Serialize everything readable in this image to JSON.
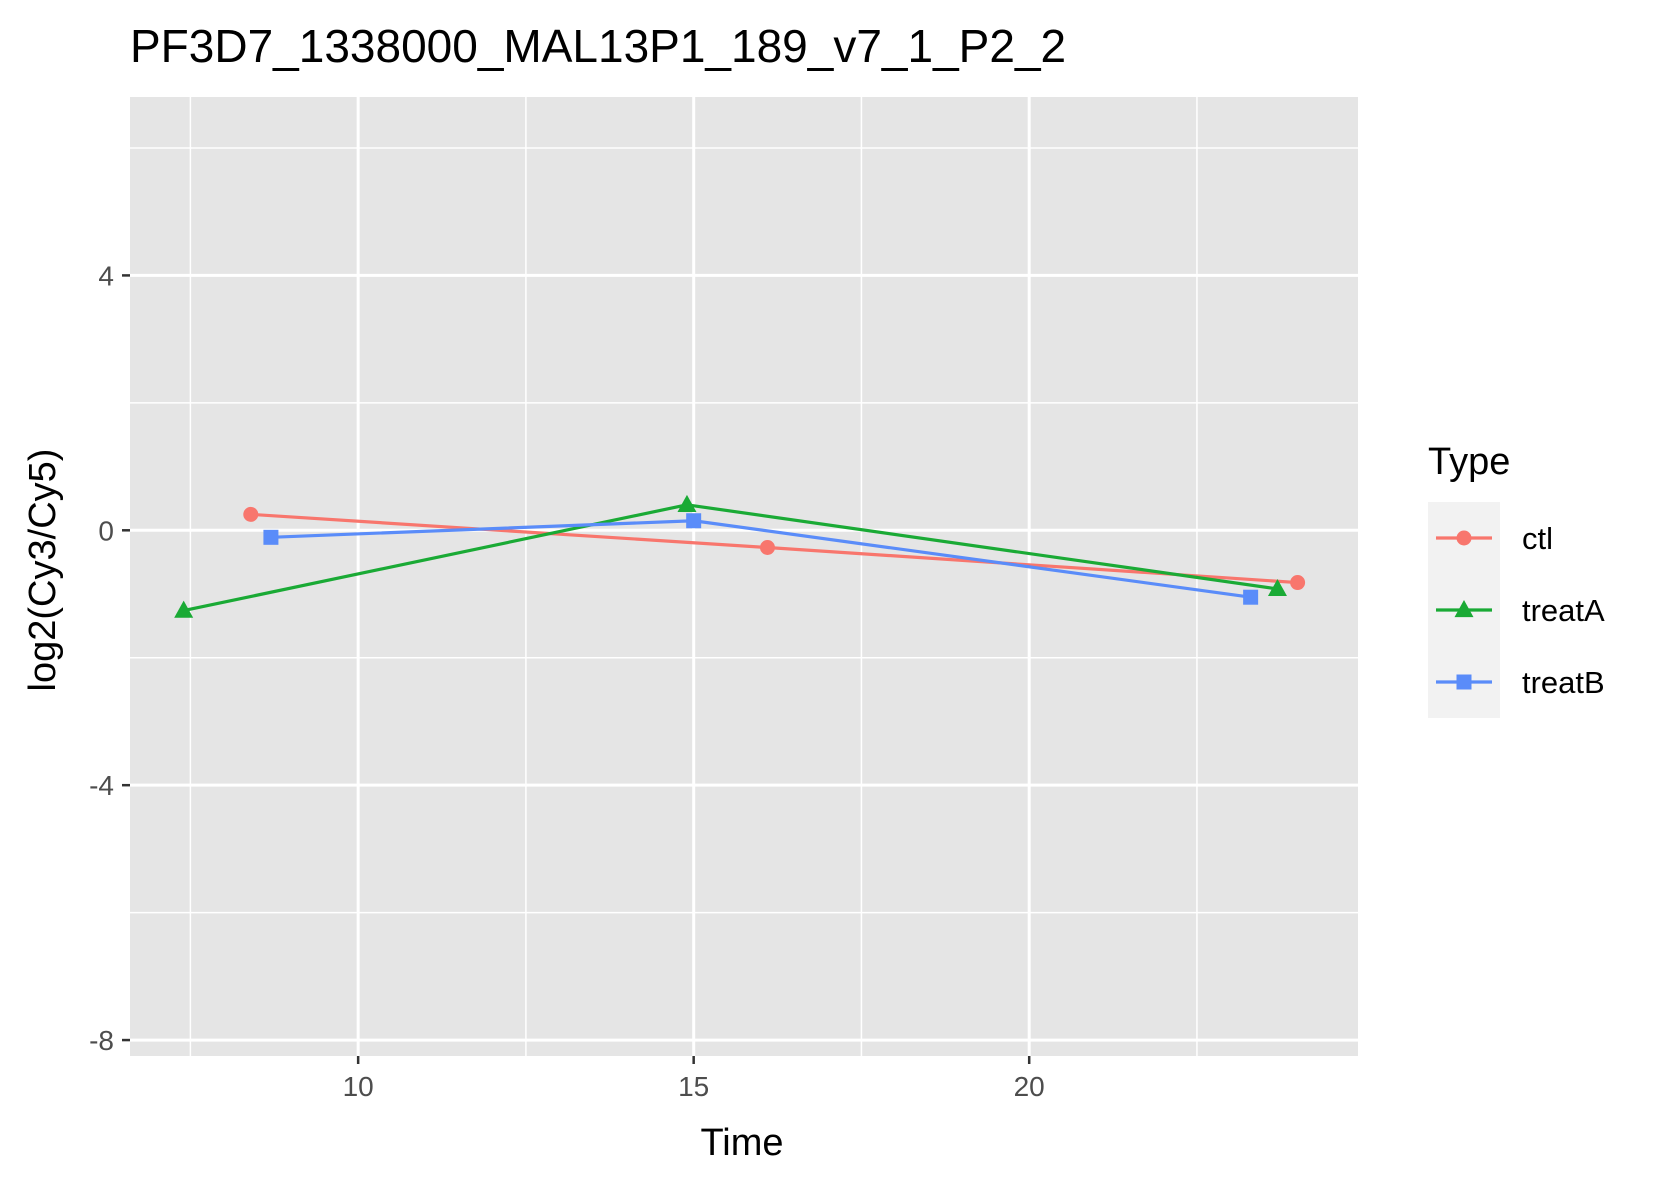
{
  "chart_data": {
    "type": "line",
    "title": "PF3D7_1338000_MAL13P1_189_v7_1_P2_2",
    "xlabel": "Time",
    "ylabel": "log2(Cy3/Cy5)",
    "xlim": [
      6.6,
      24.9
    ],
    "ylim": [
      -8.25,
      6.8
    ],
    "x_ticks": [
      10,
      15,
      20
    ],
    "y_ticks": [
      -8,
      -4,
      0,
      4
    ],
    "x_tick_labels": [
      "10",
      "15",
      "20"
    ],
    "y_tick_labels": [
      "-8",
      "-4",
      "0",
      "4"
    ],
    "grid": true,
    "panel_background": "#e5e5e5",
    "legend": {
      "title": "Type",
      "position": "right"
    },
    "series": [
      {
        "name": "ctl",
        "color": "#f8766d",
        "marker": "circle",
        "x": [
          8.4,
          16.1,
          24.0
        ],
        "y": [
          0.25,
          -0.27,
          -0.82
        ]
      },
      {
        "name": "treatA",
        "color": "#1aaa35",
        "marker": "triangle",
        "x": [
          7.4,
          14.9,
          23.7
        ],
        "y": [
          -1.26,
          0.4,
          -0.92
        ]
      },
      {
        "name": "treatB",
        "color": "#5a8cf9",
        "marker": "square",
        "x": [
          8.7,
          15.0,
          23.3
        ],
        "y": [
          -0.11,
          0.15,
          -1.05
        ]
      }
    ]
  }
}
